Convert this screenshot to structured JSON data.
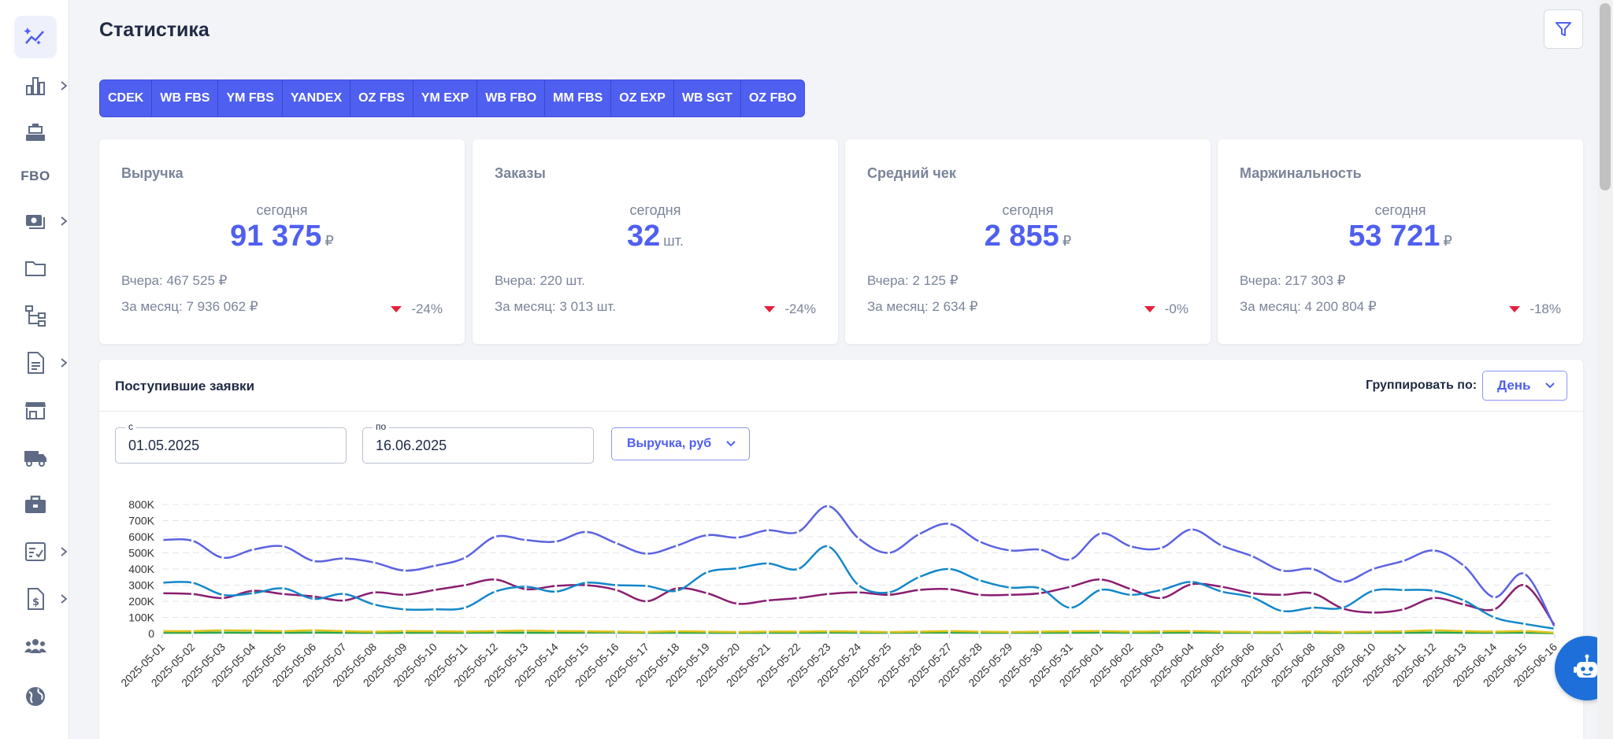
{
  "page": {
    "title": "Статистика"
  },
  "sidebar": {
    "items": [
      {
        "icon": "sparkle-chart-icon",
        "active": true
      },
      {
        "icon": "bar-chart-icon",
        "chevron": true
      },
      {
        "icon": "cash-register-icon"
      },
      {
        "label": "FBO"
      },
      {
        "icon": "money-icon",
        "chevron": true
      },
      {
        "icon": "folder-icon"
      },
      {
        "icon": "hierarchy-icon"
      },
      {
        "icon": "document-icon",
        "chevron": true
      },
      {
        "icon": "store-icon"
      },
      {
        "icon": "truck-icon"
      },
      {
        "icon": "briefcase-icon"
      },
      {
        "icon": "checklist-icon",
        "chevron": true
      },
      {
        "icon": "invoice-dollar-icon",
        "chevron": true
      },
      {
        "icon": "users-icon"
      },
      {
        "icon": "globe-icon"
      }
    ]
  },
  "tabs": [
    "CDEK",
    "WB FBS",
    "YM FBS",
    "YANDEX",
    "OZ FBS",
    "YM EXP",
    "WB FBO",
    "MM FBS",
    "OZ EXP",
    "WB SGT",
    "OZ FBO"
  ],
  "cards": [
    {
      "title": "Выручка",
      "sub": "сегодня",
      "value": "91 375",
      "unit": "₽",
      "yesterday": "Вчера: 467 525 ₽",
      "month": "За месяц: 7 936 062 ₽",
      "delta": "-24%"
    },
    {
      "title": "Заказы",
      "sub": "сегодня",
      "value": "32",
      "unit": "шт.",
      "yesterday": "Вчера: 220 шт.",
      "month": "За месяц: 3 013 шт.",
      "delta": "-24%"
    },
    {
      "title": "Средний чек",
      "sub": "сегодня",
      "value": "2 855",
      "unit": "₽",
      "yesterday": "Вчера: 2 125 ₽",
      "month": "За месяц: 2 634 ₽",
      "delta": "-0%"
    },
    {
      "title": "Маржинальность",
      "sub": "сегодня",
      "value": "53 721",
      "unit": "₽",
      "yesterday": "Вчера: 217 303 ₽",
      "month": "За месяц: 4 200 804 ₽",
      "delta": "-18%"
    }
  ],
  "panel": {
    "title": "Поступившие заявки",
    "group_label": "Группировать по:",
    "group_value": "День",
    "from_label": "с",
    "from_value": "01.05.2025",
    "to_label": "по",
    "to_value": "16.06.2025",
    "metric": "Выручка, руб"
  },
  "colors": {
    "accent": "#4f5ff0",
    "down": "#e5213d"
  },
  "chart_data": {
    "type": "line",
    "ylim": [
      0,
      800000
    ],
    "yticks": [
      0,
      100000,
      200000,
      300000,
      400000,
      500000,
      600000,
      700000,
      800000
    ],
    "ytick_labels": [
      "0",
      "100K",
      "200K",
      "300K",
      "400K",
      "500K",
      "600K",
      "700K",
      "800K"
    ],
    "x": [
      "2025-05-01",
      "2025-05-02",
      "2025-05-03",
      "2025-05-04",
      "2025-05-05",
      "2025-05-06",
      "2025-05-07",
      "2025-05-08",
      "2025-05-09",
      "2025-05-10",
      "2025-05-11",
      "2025-05-12",
      "2025-05-13",
      "2025-05-14",
      "2025-05-15",
      "2025-05-16",
      "2025-05-17",
      "2025-05-18",
      "2025-05-19",
      "2025-05-20",
      "2025-05-21",
      "2025-05-22",
      "2025-05-23",
      "2025-05-24",
      "2025-05-25",
      "2025-05-26",
      "2025-05-27",
      "2025-05-28",
      "2025-05-29",
      "2025-05-30",
      "2025-05-31",
      "2025-06-01",
      "2025-06-02",
      "2025-06-03",
      "2025-06-04",
      "2025-06-05",
      "2025-06-06",
      "2025-06-07",
      "2025-06-08",
      "2025-06-09",
      "2025-06-10",
      "2025-06-11",
      "2025-06-12",
      "2025-06-13",
      "2025-06-14",
      "2025-06-15",
      "2025-06-16"
    ],
    "grid": true,
    "series": [
      {
        "color": "#5b63e0",
        "values": [
          580000,
          575000,
          470000,
          520000,
          540000,
          450000,
          465000,
          440000,
          390000,
          420000,
          470000,
          600000,
          580000,
          570000,
          630000,
          560000,
          495000,
          545000,
          610000,
          595000,
          640000,
          630000,
          790000,
          590000,
          500000,
          615000,
          680000,
          570000,
          515000,
          520000,
          460000,
          620000,
          540000,
          530000,
          645000,
          545000,
          480000,
          390000,
          400000,
          320000,
          400000,
          450000,
          515000,
          420000,
          225000,
          370000,
          40000
        ]
      },
      {
        "color": "#1487c8",
        "values": [
          315000,
          315000,
          240000,
          250000,
          280000,
          215000,
          245000,
          180000,
          150000,
          150000,
          160000,
          260000,
          290000,
          260000,
          315000,
          300000,
          295000,
          265000,
          380000,
          405000,
          435000,
          400000,
          540000,
          300000,
          255000,
          350000,
          400000,
          330000,
          285000,
          280000,
          160000,
          270000,
          240000,
          270000,
          320000,
          260000,
          225000,
          140000,
          160000,
          160000,
          265000,
          270000,
          265000,
          205000,
          100000,
          60000,
          30000
        ]
      },
      {
        "color": "#8a1e70",
        "values": [
          250000,
          245000,
          220000,
          265000,
          245000,
          230000,
          205000,
          255000,
          240000,
          270000,
          300000,
          335000,
          275000,
          295000,
          300000,
          270000,
          200000,
          280000,
          250000,
          185000,
          205000,
          220000,
          245000,
          255000,
          240000,
          270000,
          275000,
          240000,
          240000,
          250000,
          290000,
          335000,
          275000,
          220000,
          305000,
          290000,
          250000,
          240000,
          250000,
          155000,
          130000,
          150000,
          220000,
          180000,
          150000,
          300000,
          50000
        ]
      },
      {
        "color": "#e0c21a",
        "values": [
          15000,
          15000,
          20000,
          18000,
          15000,
          20000,
          15000,
          12000,
          15000,
          14000,
          13000,
          15000,
          18000,
          15000,
          14000,
          12000,
          10000,
          14000,
          12000,
          10000,
          12000,
          12000,
          14000,
          12000,
          10000,
          12000,
          15000,
          12000,
          10000,
          12000,
          14000,
          15000,
          12000,
          14000,
          15000,
          12000,
          10000,
          10000,
          12000,
          10000,
          12000,
          14000,
          20000,
          15000,
          12000,
          15000,
          5000
        ]
      },
      {
        "color": "#2aa84a",
        "values": [
          5000,
          5000,
          6000,
          5000,
          5000,
          6000,
          5000,
          4000,
          5000,
          5000,
          5000,
          6000,
          5000,
          5000,
          6000,
          7000,
          5000,
          5000,
          5000,
          4000,
          5000,
          5000,
          6000,
          5000,
          5000,
          6000,
          6000,
          5000,
          5000,
          5000,
          5000,
          6000,
          5000,
          5000,
          6000,
          5000,
          5000,
          4000,
          5000,
          4000,
          5000,
          5000,
          6000,
          5000,
          5000,
          5000,
          2000
        ]
      }
    ]
  }
}
